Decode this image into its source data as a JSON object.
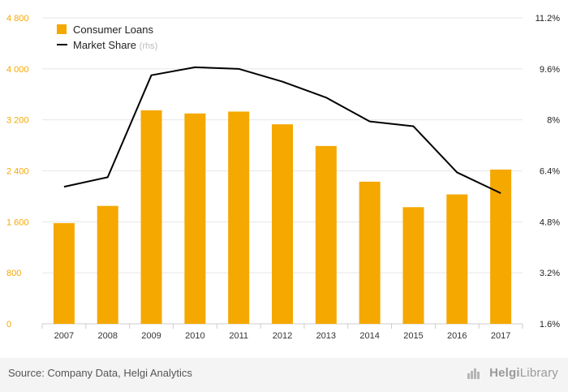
{
  "chart_data": {
    "type": "bar+line",
    "categories": [
      "2007",
      "2008",
      "2009",
      "2010",
      "2011",
      "2012",
      "2013",
      "2014",
      "2015",
      "2016",
      "2017"
    ],
    "series": [
      {
        "name": "Consumer Loans",
        "type": "bar",
        "axis": "left",
        "color": "#f5a800",
        "values": [
          1580,
          1850,
          3350,
          3300,
          3330,
          3130,
          2790,
          2230,
          1830,
          2030,
          2420
        ]
      },
      {
        "name": "Market Share",
        "legend_suffix": "(rhs)",
        "type": "line",
        "axis": "right",
        "color": "#000000",
        "values": [
          5.9,
          6.2,
          9.4,
          9.65,
          9.6,
          9.2,
          8.7,
          7.95,
          7.8,
          6.35,
          5.7
        ]
      }
    ],
    "y_left": {
      "ticks": [
        0,
        800,
        1600,
        2400,
        3200,
        4000,
        4800
      ],
      "tick_labels": [
        "0",
        "800",
        "1 600",
        "2 400",
        "3 200",
        "4 000",
        "4 800"
      ],
      "range": [
        0,
        4800
      ]
    },
    "y_right": {
      "ticks": [
        1.6,
        3.2,
        4.8,
        6.4,
        8,
        9.6,
        11.2
      ],
      "tick_labels": [
        "1.6%",
        "3.2%",
        "4.8%",
        "6.4%",
        "8%",
        "9.6%",
        "11.2%"
      ],
      "range": [
        1.6,
        11.2
      ]
    },
    "grid": true,
    "legend_position": "top-left"
  },
  "footer": {
    "source": "Source: Company Data, Helgi Analytics",
    "brand_bold": "Helgi",
    "brand_rest": "Library"
  },
  "colors": {
    "bar": "#f5a800",
    "line": "#000000",
    "left_axis_text": "#f5a800",
    "grid": "#e6e6e6",
    "footer_bg": "#f4f4f4"
  }
}
